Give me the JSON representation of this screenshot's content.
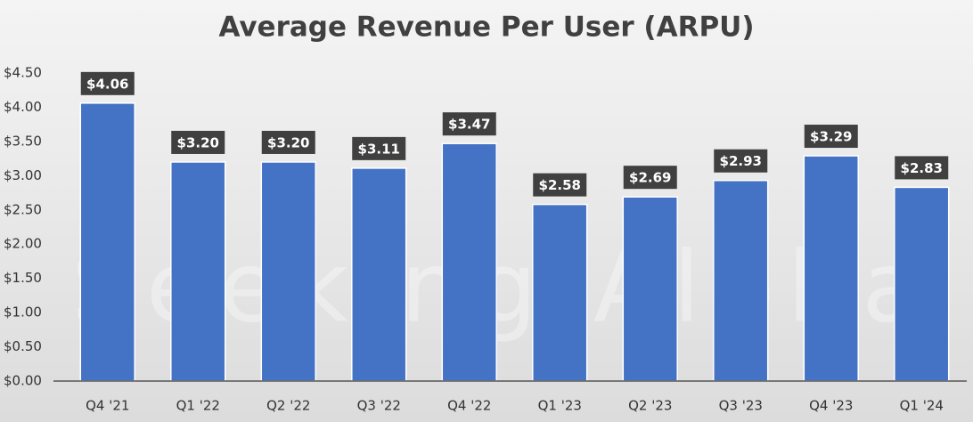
{
  "chart_data": {
    "type": "bar",
    "title": "Average Revenue Per User (ARPU)",
    "watermark": "Seeking Alpha",
    "categories": [
      "Q4 '21",
      "Q1 '22",
      "Q2 '22",
      "Q3 '22",
      "Q4 '22",
      "Q1 '23",
      "Q2 '23",
      "Q3 '23",
      "Q4 '23",
      "Q1 '24"
    ],
    "values": [
      4.06,
      3.2,
      3.2,
      3.11,
      3.47,
      2.58,
      2.69,
      2.93,
      3.29,
      2.83
    ],
    "value_labels": [
      "$4.06",
      "$3.20",
      "$3.20",
      "$3.11",
      "$3.47",
      "$2.58",
      "$2.69",
      "$2.93",
      "$3.29",
      "$2.83"
    ],
    "color": "#4472c4",
    "ylim": [
      0,
      4.5
    ],
    "yticks": [
      {
        "value": 0,
        "label": "$0.00"
      },
      {
        "value": 0.5,
        "label": "$0.50"
      },
      {
        "value": 1,
        "label": "$1.00"
      },
      {
        "value": 1.5,
        "label": "$1.50"
      },
      {
        "value": 2,
        "label": "$2.00"
      },
      {
        "value": 2.5,
        "label": "$2.50"
      },
      {
        "value": 3,
        "label": "$3.00"
      },
      {
        "value": 3.5,
        "label": "$3.50"
      },
      {
        "value": 4,
        "label": "$4.00"
      },
      {
        "value": 4.5,
        "label": "$4.50"
      }
    ],
    "grid": false
  }
}
